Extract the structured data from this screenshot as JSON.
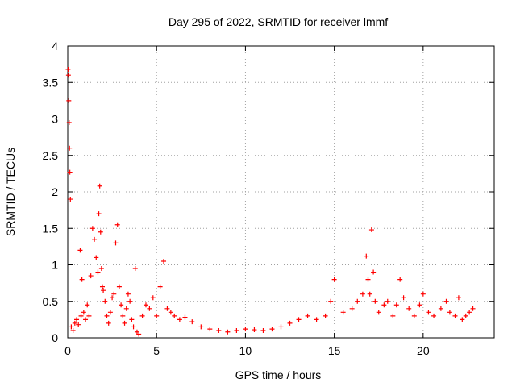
{
  "chart_data": {
    "type": "scatter",
    "title": "Day 295 of 2022, SRMTID for receiver lmmf",
    "xlabel": "GPS time / hours",
    "ylabel": "SRMTID / TECUs",
    "xlim": [
      0,
      24
    ],
    "ylim": [
      0,
      4
    ],
    "xticks": [
      0,
      5,
      10,
      15,
      20
    ],
    "xtick_labels": [
      "0",
      "5",
      "10",
      "15",
      "20"
    ],
    "yticks": [
      0,
      0.5,
      1,
      1.5,
      2,
      2.5,
      3,
      3.5,
      4
    ],
    "ytick_labels": [
      "0",
      "0.5",
      "1",
      "1.5",
      "2",
      "2.5",
      "3",
      "3.5",
      "4"
    ],
    "grid": true,
    "marker": "+",
    "color": "#ff0000",
    "series": [
      {
        "name": "SRMTID",
        "x": [
          0.02,
          0.04,
          0.06,
          0.08,
          0.1,
          0.12,
          0.15,
          0.2,
          0.3,
          0.4,
          0.5,
          0.6,
          0.7,
          0.75,
          0.8,
          0.9,
          1.0,
          1.1,
          1.2,
          1.3,
          1.4,
          1.5,
          1.6,
          1.7,
          1.75,
          1.8,
          1.85,
          1.9,
          1.95,
          2.0,
          2.1,
          2.2,
          2.3,
          2.4,
          2.5,
          2.6,
          2.7,
          2.8,
          2.9,
          3.0,
          3.1,
          3.2,
          3.3,
          3.4,
          3.5,
          3.6,
          3.7,
          3.8,
          3.9,
          4.0,
          4.2,
          4.4,
          4.6,
          4.8,
          5.0,
          5.2,
          5.4,
          5.6,
          5.8,
          6.0,
          6.3,
          6.6,
          7.0,
          7.5,
          8.0,
          8.5,
          9.0,
          9.5,
          10.0,
          10.5,
          11.0,
          11.5,
          12.0,
          12.5,
          13.0,
          13.5,
          14.0,
          14.5,
          14.8,
          15.0,
          15.5,
          16.0,
          16.3,
          16.6,
          16.8,
          16.9,
          17.0,
          17.1,
          17.2,
          17.3,
          17.5,
          17.8,
          18.0,
          18.3,
          18.5,
          18.7,
          18.9,
          19.2,
          19.5,
          19.8,
          20.0,
          20.3,
          20.6,
          21.0,
          21.3,
          21.5,
          21.8,
          22.0,
          22.2,
          22.4,
          22.6,
          22.8
        ],
        "y": [
          3.68,
          3.6,
          3.25,
          2.95,
          2.6,
          2.27,
          1.9,
          0.15,
          0.1,
          0.2,
          0.25,
          0.18,
          1.2,
          0.3,
          0.8,
          0.35,
          0.25,
          0.45,
          0.3,
          0.85,
          1.5,
          1.35,
          1.1,
          0.9,
          1.7,
          2.08,
          1.45,
          0.95,
          0.7,
          0.65,
          0.5,
          0.3,
          0.2,
          0.35,
          0.55,
          0.6,
          1.3,
          1.55,
          0.7,
          0.45,
          0.3,
          0.2,
          0.4,
          0.6,
          0.5,
          0.25,
          0.15,
          0.95,
          0.08,
          0.05,
          0.3,
          0.45,
          0.4,
          0.55,
          0.3,
          0.7,
          1.05,
          0.4,
          0.35,
          0.3,
          0.25,
          0.28,
          0.22,
          0.15,
          0.12,
          0.1,
          0.08,
          0.1,
          0.12,
          0.11,
          0.1,
          0.12,
          0.15,
          0.2,
          0.25,
          0.3,
          0.25,
          0.3,
          0.5,
          0.8,
          0.35,
          0.4,
          0.5,
          0.6,
          1.12,
          0.8,
          0.6,
          1.48,
          0.9,
          0.5,
          0.35,
          0.45,
          0.5,
          0.3,
          0.45,
          0.8,
          0.55,
          0.4,
          0.3,
          0.45,
          0.6,
          0.35,
          0.3,
          0.4,
          0.5,
          0.35,
          0.3,
          0.55,
          0.25,
          0.3,
          0.35,
          0.4
        ]
      }
    ]
  }
}
